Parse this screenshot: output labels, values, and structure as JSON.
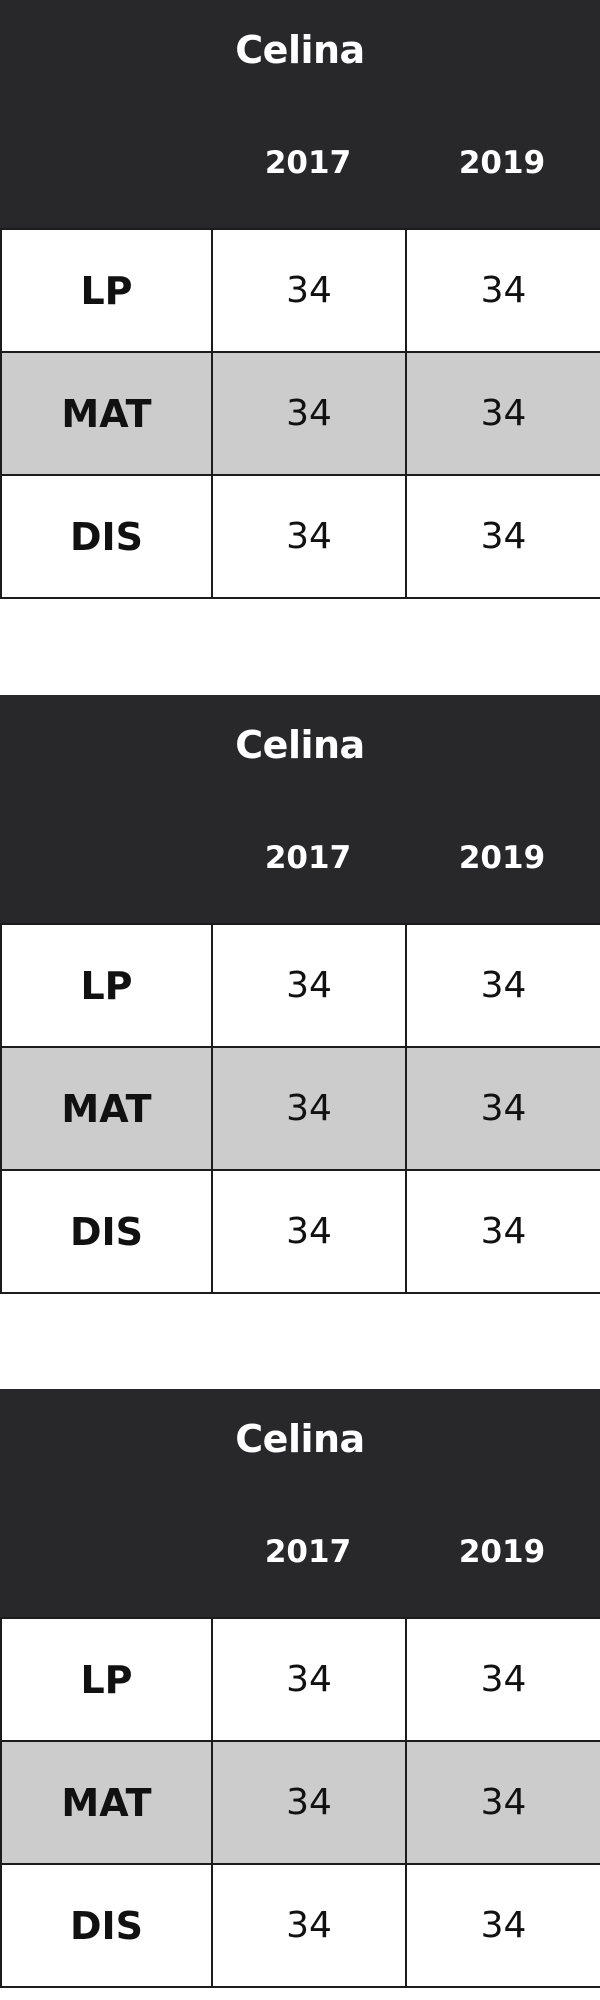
{
  "cards": [
    {
      "title": "Celina",
      "years": [
        "2017",
        "2019"
      ],
      "rows": [
        {
          "subject": "LP",
          "values": [
            "34",
            "34"
          ]
        },
        {
          "subject": "MAT",
          "values": [
            "34",
            "34"
          ]
        },
        {
          "subject": "DIS",
          "values": [
            "34",
            "34"
          ]
        }
      ]
    },
    {
      "title": "Celina",
      "years": [
        "2017",
        "2019"
      ],
      "rows": [
        {
          "subject": "LP",
          "values": [
            "34",
            "34"
          ]
        },
        {
          "subject": "MAT",
          "values": [
            "34",
            "34"
          ]
        },
        {
          "subject": "DIS",
          "values": [
            "34",
            "34"
          ]
        }
      ]
    },
    {
      "title": "Celina",
      "years": [
        "2017",
        "2019"
      ],
      "rows": [
        {
          "subject": "LP",
          "values": [
            "34",
            "34"
          ]
        },
        {
          "subject": "MAT",
          "values": [
            "34",
            "34"
          ]
        },
        {
          "subject": "DIS",
          "values": [
            "34",
            "34"
          ]
        }
      ]
    }
  ],
  "colors": {
    "header_bg": "#28282a",
    "header_text": "#ffffff",
    "shaded_row": "#cccccc",
    "border": "#1c1c1c"
  }
}
